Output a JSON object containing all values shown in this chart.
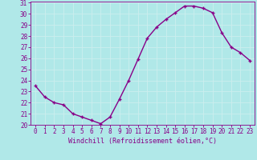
{
  "x": [
    0,
    1,
    2,
    3,
    4,
    5,
    6,
    7,
    8,
    9,
    10,
    11,
    12,
    13,
    14,
    15,
    16,
    17,
    18,
    19,
    20,
    21,
    22,
    23
  ],
  "y": [
    23.5,
    22.5,
    22.0,
    21.8,
    21.0,
    20.7,
    20.4,
    20.1,
    20.7,
    22.3,
    24.0,
    25.9,
    27.8,
    28.8,
    29.5,
    30.1,
    30.7,
    30.7,
    30.5,
    30.1,
    28.3,
    27.0,
    26.5,
    25.8
  ],
  "line_color": "#880088",
  "marker": "+",
  "marker_color": "#880088",
  "background_color": "#b0e8e8",
  "grid_color": "#cceeee",
  "xlabel": "Windchill (Refroidissement éolien,°C)",
  "xlabel_color": "#880088",
  "tick_color": "#880088",
  "ylim": [
    20,
    31
  ],
  "xlim": [
    -0.5,
    23.5
  ],
  "yticks": [
    20,
    21,
    22,
    23,
    24,
    25,
    26,
    27,
    28,
    29,
    30,
    31
  ],
  "xticks": [
    0,
    1,
    2,
    3,
    4,
    5,
    6,
    7,
    8,
    9,
    10,
    11,
    12,
    13,
    14,
    15,
    16,
    17,
    18,
    19,
    20,
    21,
    22,
    23
  ],
  "font_family": "monospace",
  "linewidth": 1.0,
  "markersize": 3.5,
  "tick_fontsize": 5.5,
  "xlabel_fontsize": 6.0
}
